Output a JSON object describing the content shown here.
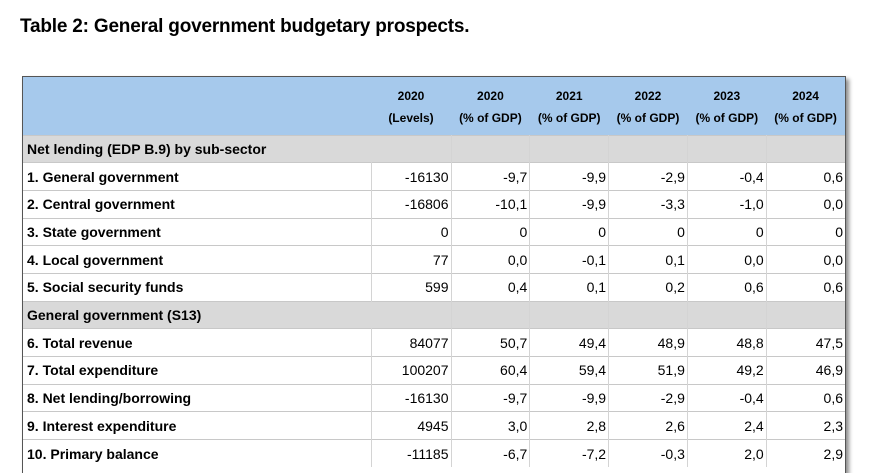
{
  "title": "Table 2: General government budgetary prospects.",
  "columns": [
    {
      "year": "2020",
      "unit": "(Levels)"
    },
    {
      "year": "2020",
      "unit": "(% of GDP)"
    },
    {
      "year": "2021",
      "unit": "(% of GDP)"
    },
    {
      "year": "2022",
      "unit": "(% of GDP)"
    },
    {
      "year": "2023",
      "unit": "(% of GDP)"
    },
    {
      "year": "2024",
      "unit": "(% of GDP)"
    }
  ],
  "sections": [
    {
      "heading": "Net lending (EDP B.9) by sub-sector",
      "rows": [
        {
          "label": "1. General government",
          "values": [
            "-16130",
            "-9,7",
            "-9,9",
            "-2,9",
            "-0,4",
            "0,6"
          ]
        },
        {
          "label": "2. Central government",
          "values": [
            "-16806",
            "-10,1",
            "-9,9",
            "-3,3",
            "-1,0",
            "0,0"
          ]
        },
        {
          "label": "3. State government",
          "values": [
            "0",
            "0",
            "0",
            "0",
            "0",
            "0"
          ]
        },
        {
          "label": "4. Local government",
          "values": [
            "77",
            "0,0",
            "-0,1",
            "0,1",
            "0,0",
            "0,0"
          ]
        },
        {
          "label": "5. Social security funds",
          "values": [
            "599",
            "0,4",
            "0,1",
            "0,2",
            "0,6",
            "0,6"
          ]
        }
      ]
    },
    {
      "heading": "General government (S13)",
      "rows": [
        {
          "label": "6. Total revenue",
          "values": [
            "84077",
            "50,7",
            "49,4",
            "48,9",
            "48,8",
            "47,5"
          ]
        },
        {
          "label": "7. Total expenditure",
          "values": [
            "100207",
            "60,4",
            "59,4",
            "51,9",
            "49,2",
            "46,9"
          ]
        },
        {
          "label": "8. Net lending/borrowing",
          "values": [
            "-16130",
            "-9,7",
            "-9,9",
            "-2,9",
            "-0,4",
            "0,6"
          ]
        },
        {
          "label": "9. Interest expenditure",
          "values": [
            "4945",
            "3,0",
            "2,8",
            "2,6",
            "2,4",
            "2,3"
          ]
        },
        {
          "label": "10. Primary balance",
          "values": [
            "-11185",
            "-6,7",
            "-7,2",
            "-0,3",
            "2,0",
            "2,9"
          ]
        }
      ]
    }
  ]
}
